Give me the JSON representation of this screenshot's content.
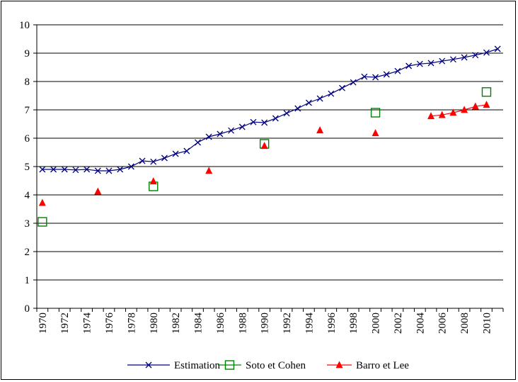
{
  "chart_data": {
    "type": "line",
    "title": "",
    "xlabel": "",
    "ylabel": "",
    "ylim": [
      0,
      10
    ],
    "yticks": [
      0,
      1,
      2,
      3,
      4,
      5,
      6,
      7,
      8,
      9,
      10
    ],
    "xlim": [
      1970,
      2011
    ],
    "xticks": [
      1970,
      1972,
      1974,
      1976,
      1978,
      1980,
      1982,
      1984,
      1986,
      1988,
      1990,
      1992,
      1994,
      1996,
      1998,
      2000,
      2002,
      2004,
      2006,
      2008,
      2010
    ],
    "grid": "horizontal",
    "legend_position": "bottom",
    "series": [
      {
        "name": "Estimation",
        "color": "#000080",
        "marker": "x",
        "line": true,
        "x": [
          1970,
          1971,
          1972,
          1973,
          1974,
          1975,
          1976,
          1977,
          1978,
          1979,
          1980,
          1981,
          1982,
          1983,
          1984,
          1985,
          1986,
          1987,
          1988,
          1989,
          1990,
          1991,
          1992,
          1993,
          1994,
          1995,
          1996,
          1997,
          1998,
          1999,
          2000,
          2001,
          2002,
          2003,
          2004,
          2005,
          2006,
          2007,
          2008,
          2009,
          2010,
          2011
        ],
        "y": [
          4.9,
          4.9,
          4.9,
          4.88,
          4.9,
          4.85,
          4.85,
          4.9,
          5.0,
          5.2,
          5.17,
          5.3,
          5.45,
          5.55,
          5.85,
          6.05,
          6.15,
          6.27,
          6.4,
          6.57,
          6.55,
          6.7,
          6.88,
          7.05,
          7.25,
          7.4,
          7.57,
          7.77,
          7.97,
          8.17,
          8.15,
          8.25,
          8.37,
          8.55,
          8.62,
          8.65,
          8.72,
          8.78,
          8.85,
          8.93,
          9.02,
          9.15
        ]
      },
      {
        "name": "Soto et Cohen",
        "color": "#008000",
        "marker": "square-open",
        "line": false,
        "x": [
          1970,
          1980,
          1990,
          2000,
          2010
        ],
        "y": [
          3.05,
          4.3,
          5.8,
          6.9,
          7.63
        ]
      },
      {
        "name": "Barro et Lee",
        "color": "#ff0000",
        "marker": "triangle",
        "line": "partial",
        "x": [
          1970,
          1975,
          1980,
          1985,
          1990,
          1995,
          2000,
          2005,
          2006,
          2007,
          2008,
          2009,
          2010
        ],
        "y": [
          3.72,
          4.12,
          4.48,
          4.85,
          5.73,
          6.28,
          6.18,
          6.78,
          6.82,
          6.9,
          7.0,
          7.12,
          7.18
        ],
        "connected_from": 2005
      }
    ]
  }
}
